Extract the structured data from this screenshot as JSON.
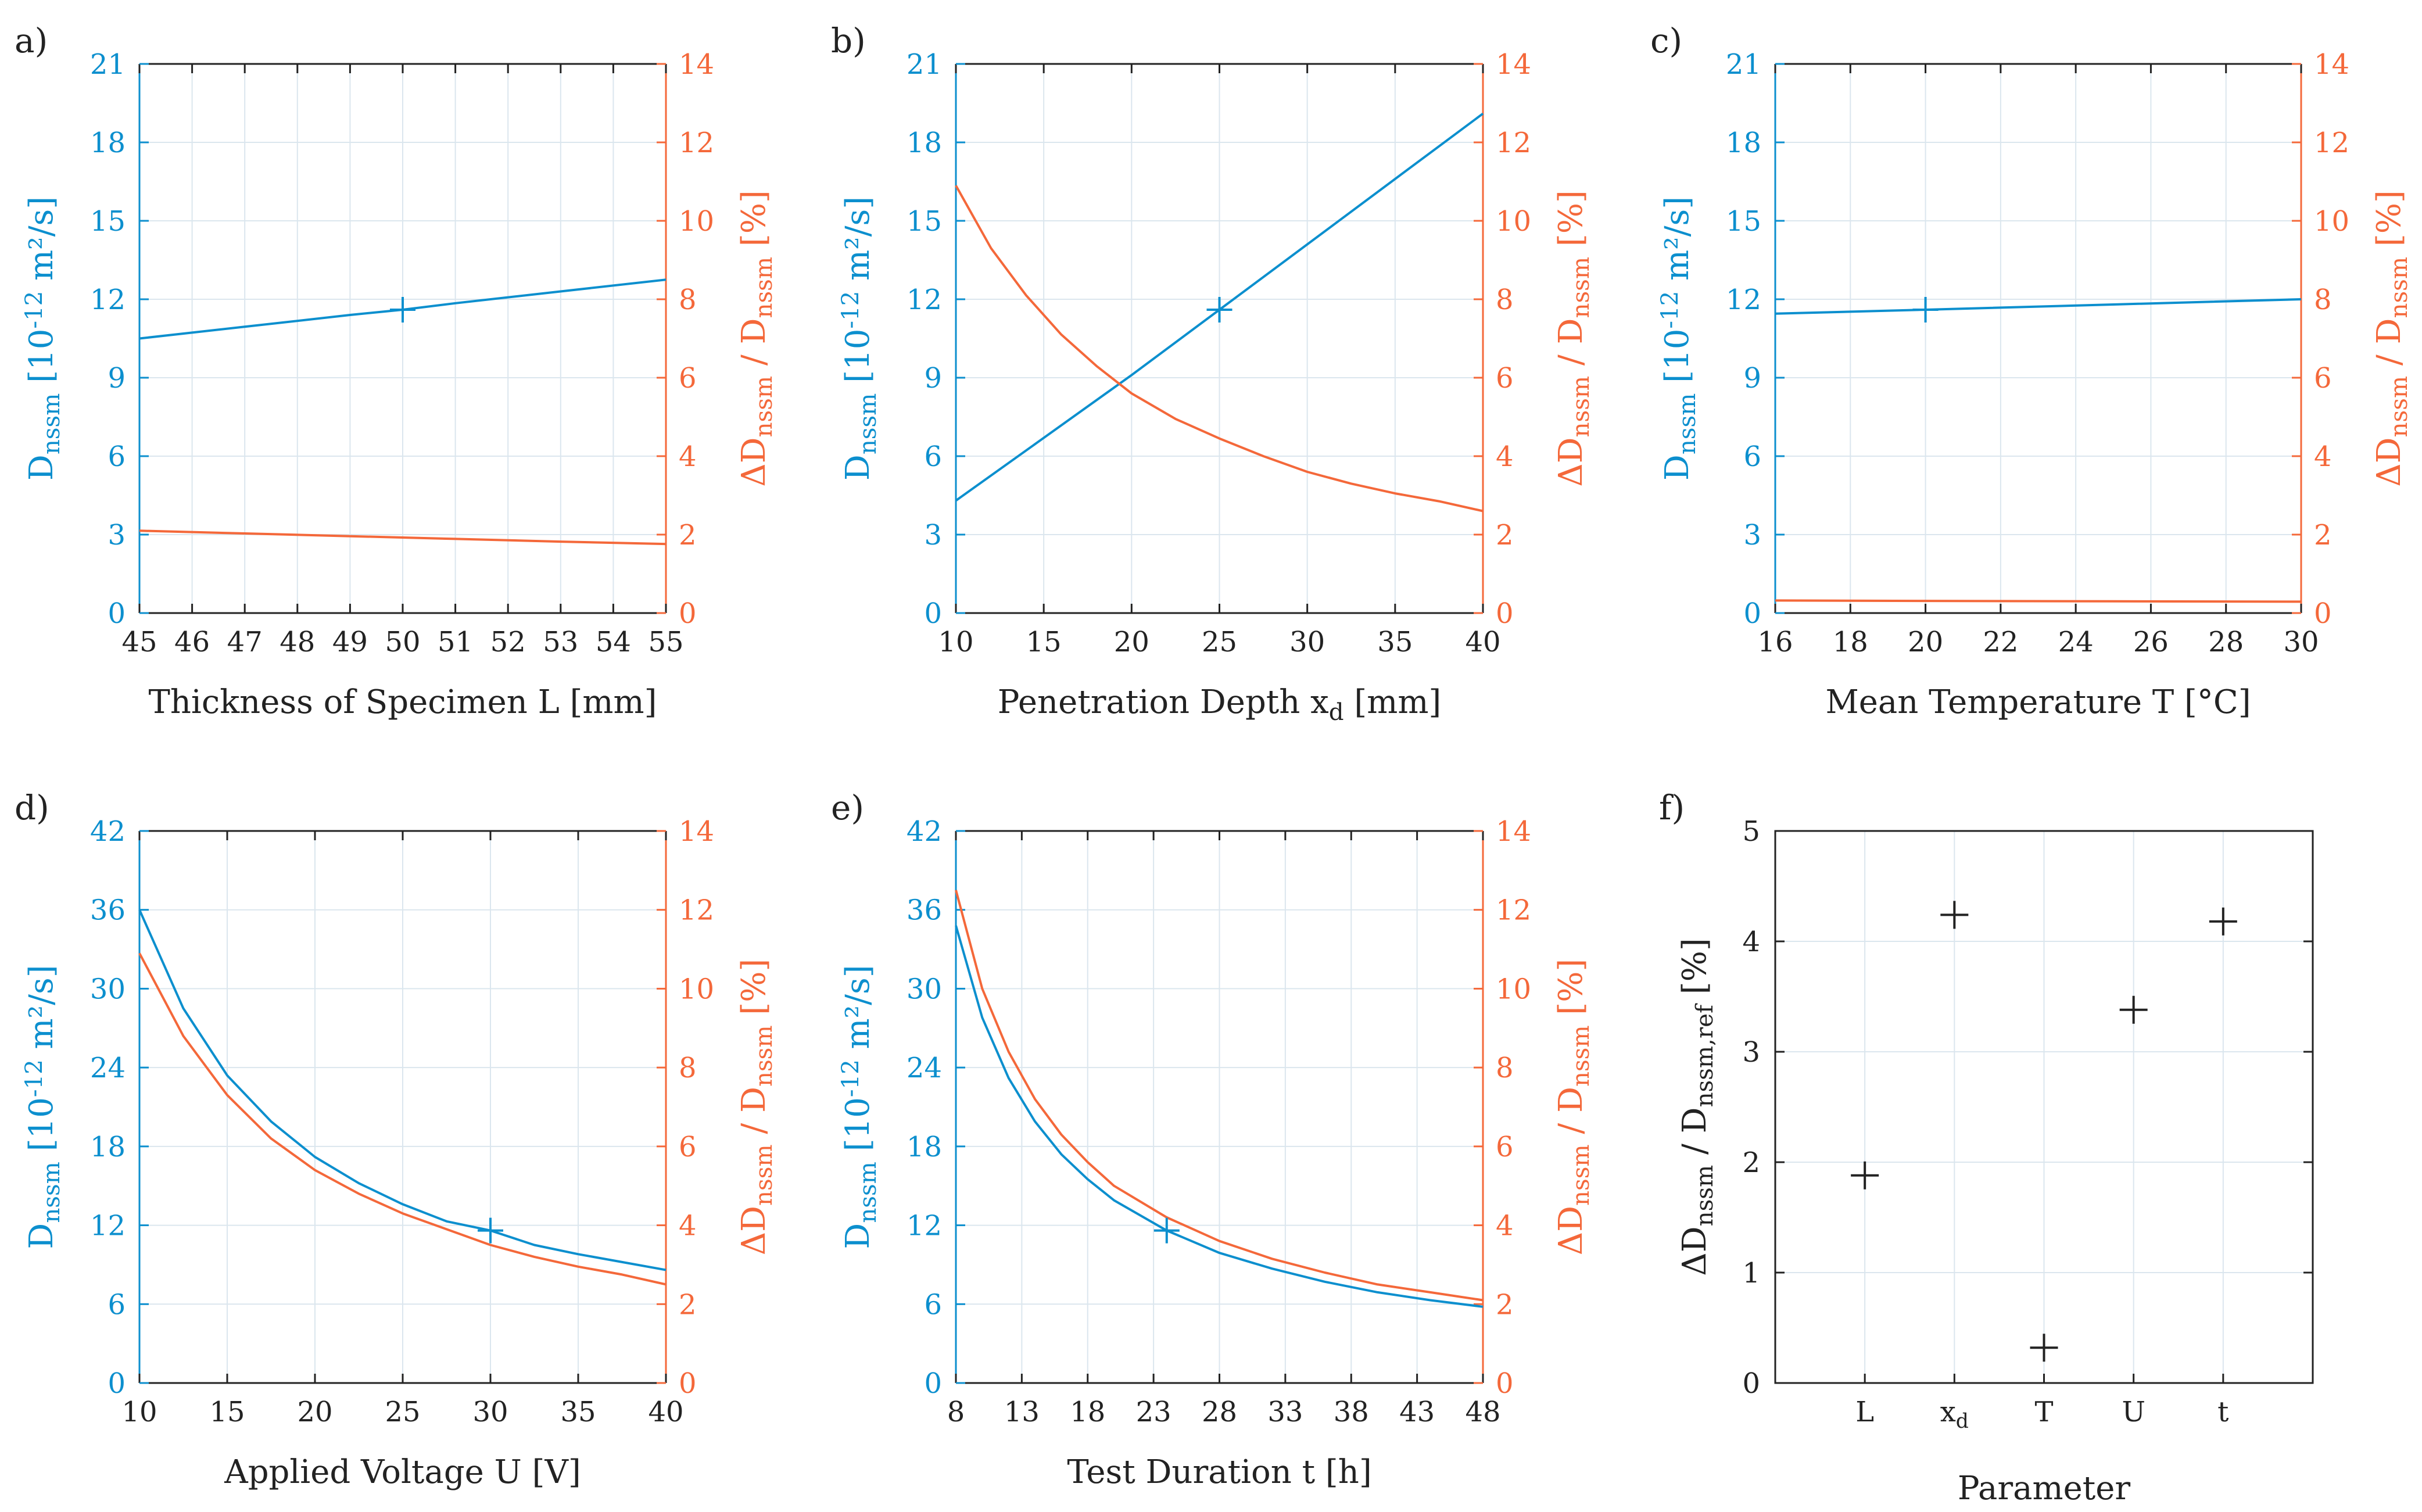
{
  "colors": {
    "left_axis": "#0c8fce",
    "right_axis": "#f4683a",
    "neutral": "#222222",
    "grid": "#dbe6ee"
  },
  "chart_data": [
    {
      "panel": "a)",
      "type": "line",
      "xlabel": "Thickness of Specimen L [mm]",
      "xlim": [
        45,
        55
      ],
      "xticks": [
        45,
        46,
        47,
        48,
        49,
        50,
        51,
        52,
        53,
        54,
        55
      ],
      "ylabel_left": "D_nssm [10^-12 m²/s]",
      "ylim_left": [
        0,
        21
      ],
      "yticks_left": [
        0,
        3,
        6,
        9,
        12,
        15,
        18,
        21
      ],
      "ylabel_right": "ΔD_nssm / D_nssm [%]",
      "ylim_right": [
        0,
        14
      ],
      "yticks_right": [
        0,
        2,
        4,
        6,
        8,
        10,
        12,
        14
      ],
      "series": [
        {
          "name": "D_nssm",
          "axis": "left",
          "x": [
            45,
            47,
            49,
            50,
            51,
            53,
            55
          ],
          "values": [
            10.5,
            10.95,
            11.4,
            11.6,
            11.85,
            12.3,
            12.75
          ]
        },
        {
          "name": "ΔD_nssm / D_nssm",
          "axis": "right",
          "x": [
            45,
            47,
            49,
            51,
            53,
            55
          ],
          "values": [
            2.1,
            2.03,
            1.96,
            1.89,
            1.82,
            1.76
          ]
        }
      ],
      "reference_point": {
        "x": 50,
        "y": 11.6
      }
    },
    {
      "panel": "b)",
      "type": "line",
      "xlabel": "Penetration Depth x_d [mm]",
      "xlim": [
        10,
        40
      ],
      "xticks": [
        10,
        15,
        20,
        25,
        30,
        35,
        40
      ],
      "ylabel_left": "D_nssm [10^-12 m²/s]",
      "ylim_left": [
        0,
        21
      ],
      "yticks_left": [
        0,
        3,
        6,
        9,
        12,
        15,
        18,
        21
      ],
      "ylabel_right": "ΔD_nssm / D_nssm [%]",
      "ylim_right": [
        0,
        14
      ],
      "yticks_right": [
        0,
        2,
        4,
        6,
        8,
        10,
        12,
        14
      ],
      "series": [
        {
          "name": "D_nssm",
          "axis": "left",
          "x": [
            10,
            15,
            20,
            25,
            30,
            35,
            40
          ],
          "values": [
            4.3,
            6.7,
            9.1,
            11.6,
            14.1,
            16.6,
            19.1
          ]
        },
        {
          "name": "ΔD_nssm / D_nssm",
          "axis": "right",
          "x": [
            10,
            12,
            14,
            16,
            18,
            20,
            22.5,
            25,
            27.5,
            30,
            32.5,
            35,
            37.5,
            40
          ],
          "values": [
            10.9,
            9.3,
            8.1,
            7.1,
            6.3,
            5.6,
            4.95,
            4.45,
            4.0,
            3.6,
            3.3,
            3.05,
            2.85,
            2.6
          ]
        }
      ],
      "reference_point": {
        "x": 25,
        "y": 11.6
      }
    },
    {
      "panel": "c)",
      "type": "line",
      "xlabel": "Mean Temperature T [°C]",
      "xlim": [
        16,
        30
      ],
      "xticks": [
        16,
        18,
        20,
        22,
        24,
        26,
        28,
        30
      ],
      "ylabel_left": "D_nssm [10^-12 m²/s]",
      "ylim_left": [
        0,
        21
      ],
      "yticks_left": [
        0,
        3,
        6,
        9,
        12,
        15,
        18,
        21
      ],
      "ylabel_right": "ΔD_nssm / D_nssm [%]",
      "ylim_right": [
        0,
        14
      ],
      "yticks_right": [
        0,
        2,
        4,
        6,
        8,
        10,
        12,
        14
      ],
      "series": [
        {
          "name": "D_nssm",
          "axis": "left",
          "x": [
            16,
            20,
            25,
            30
          ],
          "values": [
            11.45,
            11.6,
            11.8,
            12.0
          ]
        },
        {
          "name": "ΔD_nssm / D_nssm",
          "axis": "right",
          "x": [
            16,
            20,
            25,
            30
          ],
          "values": [
            0.32,
            0.31,
            0.3,
            0.29
          ]
        }
      ],
      "reference_point": {
        "x": 20,
        "y": 11.6
      }
    },
    {
      "panel": "d)",
      "type": "line",
      "xlabel": "Applied Voltage U [V]",
      "xlim": [
        10,
        40
      ],
      "xticks": [
        10,
        15,
        20,
        25,
        30,
        35,
        40
      ],
      "ylabel_left": "D_nssm [10^-12 m²/s]",
      "ylim_left": [
        0,
        42
      ],
      "yticks_left": [
        0,
        6,
        12,
        18,
        24,
        30,
        36,
        42
      ],
      "ylabel_right": "ΔD_nssm / D_nssm [%]",
      "ylim_right": [
        0,
        14
      ],
      "yticks_right": [
        0,
        2,
        4,
        6,
        8,
        10,
        12,
        14
      ],
      "series": [
        {
          "name": "D_nssm",
          "axis": "left",
          "x": [
            10,
            12.5,
            15,
            17.5,
            20,
            22.5,
            25,
            27.5,
            30,
            32.5,
            35,
            37.5,
            40
          ],
          "values": [
            36.0,
            28.5,
            23.4,
            19.9,
            17.2,
            15.2,
            13.6,
            12.3,
            11.6,
            10.5,
            9.8,
            9.2,
            8.6
          ]
        },
        {
          "name": "ΔD_nssm / D_nssm",
          "axis": "right",
          "x": [
            10,
            12.5,
            15,
            17.5,
            20,
            22.5,
            25,
            27.5,
            30,
            32.5,
            35,
            37.5,
            40
          ],
          "values": [
            10.9,
            8.8,
            7.3,
            6.2,
            5.4,
            4.8,
            4.3,
            3.9,
            3.5,
            3.2,
            2.95,
            2.75,
            2.5
          ]
        }
      ],
      "reference_point": {
        "x": 30,
        "y": 11.6
      }
    },
    {
      "panel": "e)",
      "type": "line",
      "xlabel": "Test Duration t [h]",
      "xlim": [
        8,
        48
      ],
      "xticks": [
        8,
        13,
        18,
        23,
        28,
        33,
        38,
        43,
        48
      ],
      "ylabel_left": "D_nssm [10^-12 m²/s]",
      "ylim_left": [
        0,
        42
      ],
      "yticks_left": [
        0,
        6,
        12,
        18,
        24,
        30,
        36,
        42
      ],
      "ylabel_right": "ΔD_nssm / D_nssm [%]",
      "ylim_right": [
        0,
        14
      ],
      "yticks_right": [
        0,
        2,
        4,
        6,
        8,
        10,
        12,
        14
      ],
      "series": [
        {
          "name": "D_nssm",
          "axis": "left",
          "x": [
            8,
            10,
            12,
            14,
            16,
            18,
            20,
            24,
            28,
            32,
            36,
            40,
            44,
            48
          ],
          "values": [
            34.8,
            27.8,
            23.2,
            19.9,
            17.4,
            15.5,
            13.9,
            11.6,
            9.9,
            8.7,
            7.7,
            6.9,
            6.3,
            5.8
          ]
        },
        {
          "name": "ΔD_nssm / D_nssm",
          "axis": "right",
          "x": [
            8,
            10,
            12,
            14,
            16,
            18,
            20,
            24,
            28,
            32,
            36,
            40,
            44,
            48
          ],
          "values": [
            12.5,
            10.0,
            8.4,
            7.2,
            6.3,
            5.6,
            5.0,
            4.2,
            3.6,
            3.15,
            2.8,
            2.5,
            2.3,
            2.1
          ]
        }
      ],
      "reference_point": {
        "x": 24,
        "y": 11.6
      }
    },
    {
      "panel": "f)",
      "type": "scatter",
      "xlabel": "Parameter",
      "categories": [
        "L",
        "x_d",
        "T",
        "U",
        "t"
      ],
      "ylabel": "ΔD_nssm / D_nssm,ref [%]",
      "ylim": [
        0,
        5
      ],
      "yticks": [
        0,
        1,
        2,
        3,
        4,
        5
      ],
      "values": [
        1.88,
        4.24,
        0.32,
        3.38,
        4.18
      ]
    }
  ]
}
